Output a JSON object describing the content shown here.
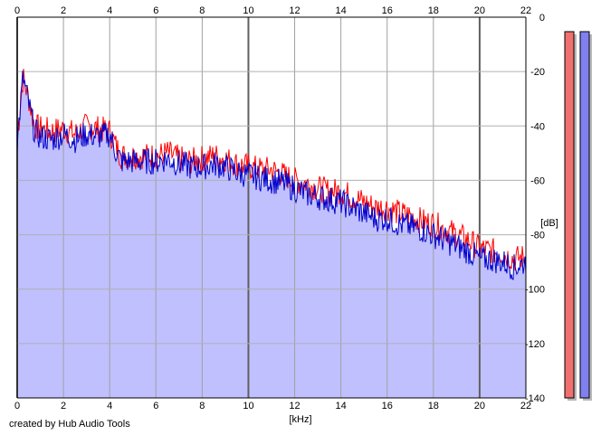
{
  "credit": "created by Hub Audio Tools",
  "chart_data": {
    "type": "area",
    "xlabel": "[kHz]",
    "ylabel": "[dB]",
    "xlim": [
      0,
      22
    ],
    "ylim": [
      -140,
      0
    ],
    "x_ticks": [
      "0",
      "2",
      "4",
      "6",
      "8",
      "10",
      "12",
      "14",
      "16",
      "18",
      "20",
      "22"
    ],
    "y_ticks": [
      "0",
      "-20",
      "-40",
      "-60",
      "-80",
      "-100",
      "-120",
      "-140"
    ],
    "grid": true,
    "x": [
      0,
      0.25,
      0.5,
      0.75,
      1,
      1.5,
      2,
      2.5,
      3,
      3.5,
      4,
      4.25,
      4.5,
      5,
      5.5,
      6,
      6.5,
      7,
      7.5,
      8,
      8.5,
      9,
      9.5,
      10,
      10.5,
      11,
      11.5,
      12,
      12.5,
      13,
      13.5,
      14,
      14.5,
      15,
      15.5,
      16,
      16.5,
      17,
      17.5,
      18,
      18.5,
      19,
      19.5,
      20,
      20.5,
      21,
      21.5,
      22
    ],
    "series": [
      {
        "values": [
          -45,
          -22,
          -30,
          -40,
          -41,
          -42,
          -41,
          -43,
          -40,
          -41,
          -42,
          -47,
          -51,
          -51,
          -51,
          -51,
          -50,
          -52,
          -53,
          -52,
          -51,
          -52,
          -54,
          -55,
          -56,
          -56,
          -58,
          -60,
          -61,
          -63,
          -64,
          -64,
          -66,
          -68,
          -70,
          -70,
          -72,
          -73,
          -75,
          -76,
          -78,
          -80,
          -82,
          -85,
          -86,
          -87,
          -89,
          -88
        ],
        "color": "#ff0000"
      },
      {
        "values": [
          -46,
          -22,
          -32,
          -42,
          -44,
          -45,
          -43,
          -45,
          -43,
          -44,
          -43,
          -49,
          -53,
          -53,
          -53,
          -53,
          -52,
          -54,
          -55,
          -55,
          -54,
          -55,
          -57,
          -58,
          -59,
          -60,
          -61,
          -63,
          -65,
          -66,
          -67,
          -68,
          -70,
          -72,
          -74,
          -74,
          -76,
          -77,
          -78,
          -80,
          -82,
          -84,
          -86,
          -89,
          -89,
          -90,
          -92,
          -90
        ],
        "color": "#0000cc"
      }
    ],
    "fill_color": "#c0c0ff",
    "meters": [
      {
        "level": 1.0,
        "color": "#f07070"
      },
      {
        "level": 1.0,
        "color": "#8080f0"
      }
    ]
  }
}
